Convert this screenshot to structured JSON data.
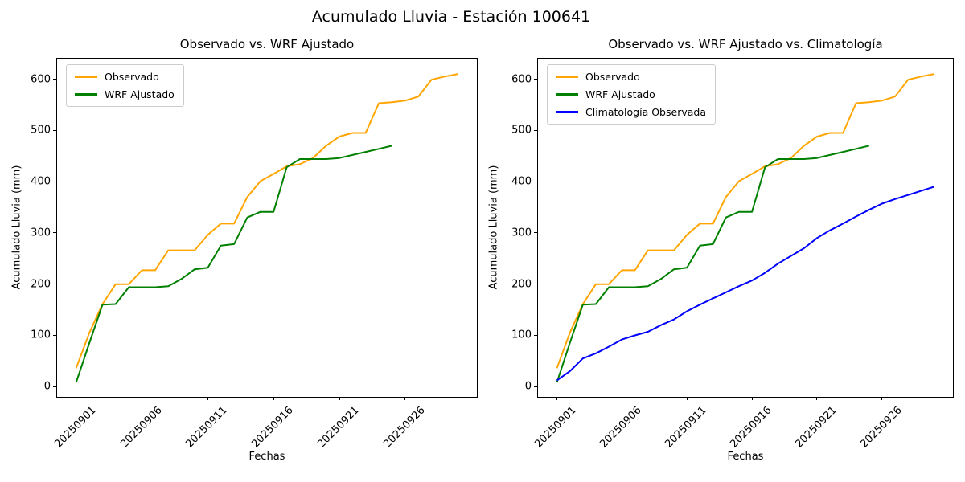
{
  "figure": {
    "suptitle": "Acumulado Lluvia - Estación 100641"
  },
  "chart_data": [
    {
      "type": "line",
      "title": "Observado vs. WRF Ajustado",
      "xlabel": "Fechas",
      "ylabel": "Acumulado Lluvia (mm)",
      "x": [
        "20250901",
        "20250902",
        "20250903",
        "20250904",
        "20250905",
        "20250906",
        "20250907",
        "20250908",
        "20250909",
        "20250910",
        "20250911",
        "20250912",
        "20250913",
        "20250914",
        "20250915",
        "20250916",
        "20250917",
        "20250918",
        "20250919",
        "20250920",
        "20250921",
        "20250922",
        "20250923",
        "20250924",
        "20250925",
        "20250926",
        "20250927",
        "20250928",
        "20250929",
        "20250930"
      ],
      "x_ticks_shown": [
        "20250901",
        "20250906",
        "20250911",
        "20250916",
        "20250921",
        "20250926"
      ],
      "y_ticks": [
        0,
        100,
        200,
        300,
        400,
        500,
        600
      ],
      "ylim": [
        -20,
        640
      ],
      "grid": false,
      "legend_position": "upper left",
      "series": [
        {
          "name": "Observado",
          "color": "#FFA500",
          "values": [
            36,
            105,
            161,
            200,
            200,
            227,
            227,
            266,
            266,
            266,
            296,
            318,
            318,
            370,
            401,
            415,
            430,
            434,
            446,
            470,
            488,
            495,
            495,
            553,
            555,
            558,
            566,
            599,
            605,
            610
          ]
        },
        {
          "name": "WRF Ajustado",
          "color": "#008000",
          "values": [
            8,
            85,
            160,
            161,
            194,
            194,
            194,
            196,
            210,
            229,
            232,
            275,
            278,
            330,
            341,
            341,
            428,
            444,
            444,
            444,
            446,
            452,
            458,
            464,
            470
          ]
        }
      ]
    },
    {
      "type": "line",
      "title": "Observado vs. WRF Ajustado vs. Climatología",
      "xlabel": "Fechas",
      "ylabel": "Acumulado Lluvia (mm)",
      "x": [
        "20250901",
        "20250902",
        "20250903",
        "20250904",
        "20250905",
        "20250906",
        "20250907",
        "20250908",
        "20250909",
        "20250910",
        "20250911",
        "20250912",
        "20250913",
        "20250914",
        "20250915",
        "20250916",
        "20250917",
        "20250918",
        "20250919",
        "20250920",
        "20250921",
        "20250922",
        "20250923",
        "20250924",
        "20250925",
        "20250926",
        "20250927",
        "20250928",
        "20250929",
        "20250930"
      ],
      "x_ticks_shown": [
        "20250901",
        "20250906",
        "20250911",
        "20250916",
        "20250921",
        "20250926"
      ],
      "y_ticks": [
        0,
        100,
        200,
        300,
        400,
        500,
        600
      ],
      "ylim": [
        -20,
        640
      ],
      "grid": false,
      "legend_position": "upper left",
      "series": [
        {
          "name": "Observado",
          "color": "#FFA500",
          "values": [
            36,
            105,
            161,
            200,
            200,
            227,
            227,
            266,
            266,
            266,
            296,
            318,
            318,
            370,
            401,
            415,
            430,
            434,
            446,
            470,
            488,
            495,
            495,
            553,
            555,
            558,
            566,
            599,
            605,
            610
          ]
        },
        {
          "name": "WRF Ajustado",
          "color": "#008000",
          "values": [
            8,
            85,
            160,
            161,
            194,
            194,
            194,
            196,
            210,
            229,
            232,
            275,
            278,
            330,
            341,
            341,
            428,
            444,
            444,
            444,
            446,
            452,
            458,
            464,
            470
          ]
        },
        {
          "name": "Climatología Observada",
          "color": "#0000FF",
          "values": [
            12,
            30,
            55,
            65,
            78,
            92,
            100,
            107,
            120,
            131,
            147,
            160,
            172,
            184,
            196,
            207,
            222,
            240,
            255,
            270,
            290,
            305,
            318,
            332,
            345,
            357,
            366,
            374,
            382,
            390
          ]
        }
      ]
    }
  ]
}
